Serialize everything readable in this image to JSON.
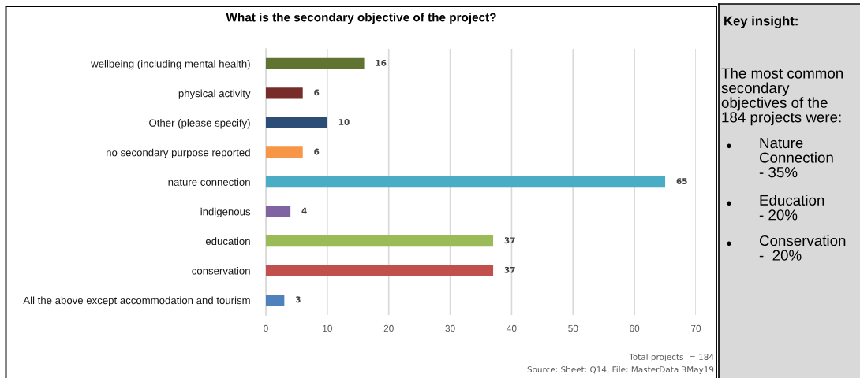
{
  "chart_data": [
    {
      "type": "bar",
      "orientation": "horizontal",
      "title": "What is the secondary objective of the project?",
      "categories": [
        "wellbeing (including mental health)",
        "physical activity",
        "Other (please specify)",
        "no secondary purpose reported",
        "nature connection",
        "indigenous",
        "education",
        "conservation",
        "All the above except accommodation and tourism"
      ],
      "values": [
        16,
        6,
        10,
        6,
        65,
        4,
        37,
        37,
        3
      ],
      "colors": [
        "#607330",
        "#772c2a",
        "#2c4d75",
        "#f79646",
        "#4bacc6",
        "#8064a2",
        "#9bbb59",
        "#c0504d",
        "#4f81bd"
      ],
      "xlim": [
        0,
        70
      ],
      "xticks": [
        0,
        10,
        20,
        30,
        40,
        50,
        60,
        70
      ],
      "grid": "x",
      "data_labels": true,
      "annotations": [
        "Total projects  = 184",
        "Source: Sheet: Q14, File: MasterData 3May19"
      ]
    },
    {
      "type": "other",
      "title": "Key insight:",
      "annotations": [
        "The most common\nsecondary\nobjectives of the\n184 projects were:",
        "Nature\nConnection\n- 35%",
        "Education\n- 20%",
        "Conservation\n-  20%"
      ]
    }
  ]
}
